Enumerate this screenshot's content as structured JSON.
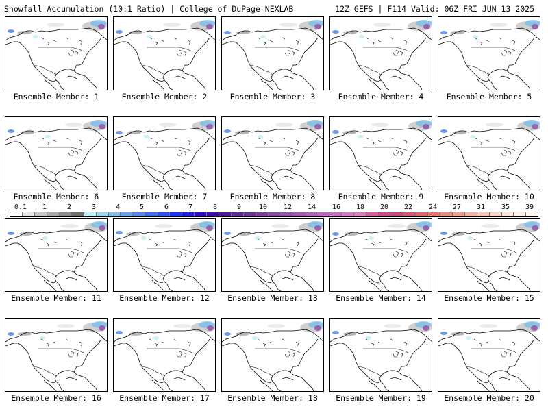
{
  "header": {
    "left": "Snowfall Accumulation (10:1 Ratio) | College of DuPage NEXLAB",
    "right": "12Z GEFS | F114 Valid: 06Z FRI JUN 13 2025"
  },
  "panels": [
    {
      "label": "Ensemble Member: 1"
    },
    {
      "label": "Ensemble Member: 2"
    },
    {
      "label": "Ensemble Member: 3"
    },
    {
      "label": "Ensemble Member: 4"
    },
    {
      "label": "Ensemble Member: 5"
    },
    {
      "label": "Ensemble Member: 6"
    },
    {
      "label": "Ensemble Member: 7"
    },
    {
      "label": "Ensemble Member: 8"
    },
    {
      "label": "Ensemble Member: 9"
    },
    {
      "label": "Ensemble Member: 10"
    },
    {
      "label": "Ensemble Member: 11"
    },
    {
      "label": "Ensemble Member: 12"
    },
    {
      "label": "Ensemble Member: 13"
    },
    {
      "label": "Ensemble Member: 14"
    },
    {
      "label": "Ensemble Member: 15"
    },
    {
      "label": "Ensemble Member: 16"
    },
    {
      "label": "Ensemble Member: 17"
    },
    {
      "label": "Ensemble Member: 18"
    },
    {
      "label": "Ensemble Member: 19"
    },
    {
      "label": "Ensemble Member: 20"
    }
  ],
  "color_scale": {
    "labels": [
      "0.1",
      "1",
      "2",
      "3",
      "4",
      "5",
      "6",
      "7",
      "8",
      "9",
      "10",
      "12",
      "14",
      "16",
      "18",
      "20",
      "22",
      "24",
      "27",
      "31",
      "35",
      "39"
    ],
    "colors": [
      "#ffffff",
      "#e6e6e6",
      "#c8c8c8",
      "#a8a8a8",
      "#8a8a8a",
      "#6e6e6e",
      "#bdf0f5",
      "#9ad8ee",
      "#7fbfe8",
      "#6aa3e5",
      "#5488e4",
      "#3c6de8",
      "#2a52ee",
      "#1a35f5",
      "#1e1ee0",
      "#2e0dc0",
      "#3e0aa8",
      "#4a1a96",
      "#5a2a8e",
      "#6a3592",
      "#7a4099",
      "#874aa0",
      "#9452a8",
      "#a15ab0",
      "#ae62b8",
      "#bb6ac0",
      "#c872c4",
      "#d47ac0",
      "#dc7eb8",
      "#d2609e",
      "#c84c8a",
      "#c04a7a",
      "#cc5a72",
      "#d86a6e",
      "#e07a74",
      "#e88c80",
      "#eea090",
      "#f2b4a2",
      "#f6c6b4",
      "#f9d6c6",
      "#fbe4d6",
      "#fdf0e6",
      "#fff8f0"
    ]
  }
}
